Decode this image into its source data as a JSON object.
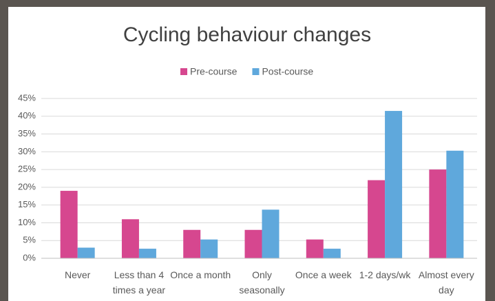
{
  "chart_data": {
    "type": "bar",
    "title": "Cycling behaviour changes",
    "categories": [
      "Never",
      "Less than 4 times a year",
      "Once a month",
      "Only seasonally",
      "Once a week",
      "1-2 days/wk",
      "Almost every day"
    ],
    "series": [
      {
        "name": "Pre-course",
        "color": "#d6478f",
        "values": [
          19,
          11,
          8,
          8,
          5.3,
          22,
          25
        ]
      },
      {
        "name": "Post-course",
        "color": "#5fa8dc",
        "values": [
          3,
          2.7,
          5.3,
          13.7,
          2.7,
          41.5,
          30.3
        ]
      }
    ],
    "ylim": [
      0,
      45
    ],
    "yticks": [
      {
        "value": 0,
        "label": "0%"
      },
      {
        "value": 5,
        "label": "5%"
      },
      {
        "value": 10,
        "label": "10%"
      },
      {
        "value": 15,
        "label": "15%"
      },
      {
        "value": 20,
        "label": "20%"
      },
      {
        "value": 25,
        "label": "25%"
      },
      {
        "value": 30,
        "label": "30%"
      },
      {
        "value": 35,
        "label": "35%"
      },
      {
        "value": 40,
        "label": "40%"
      },
      {
        "value": 45,
        "label": "45%"
      }
    ],
    "grid": true,
    "legend": "top"
  }
}
